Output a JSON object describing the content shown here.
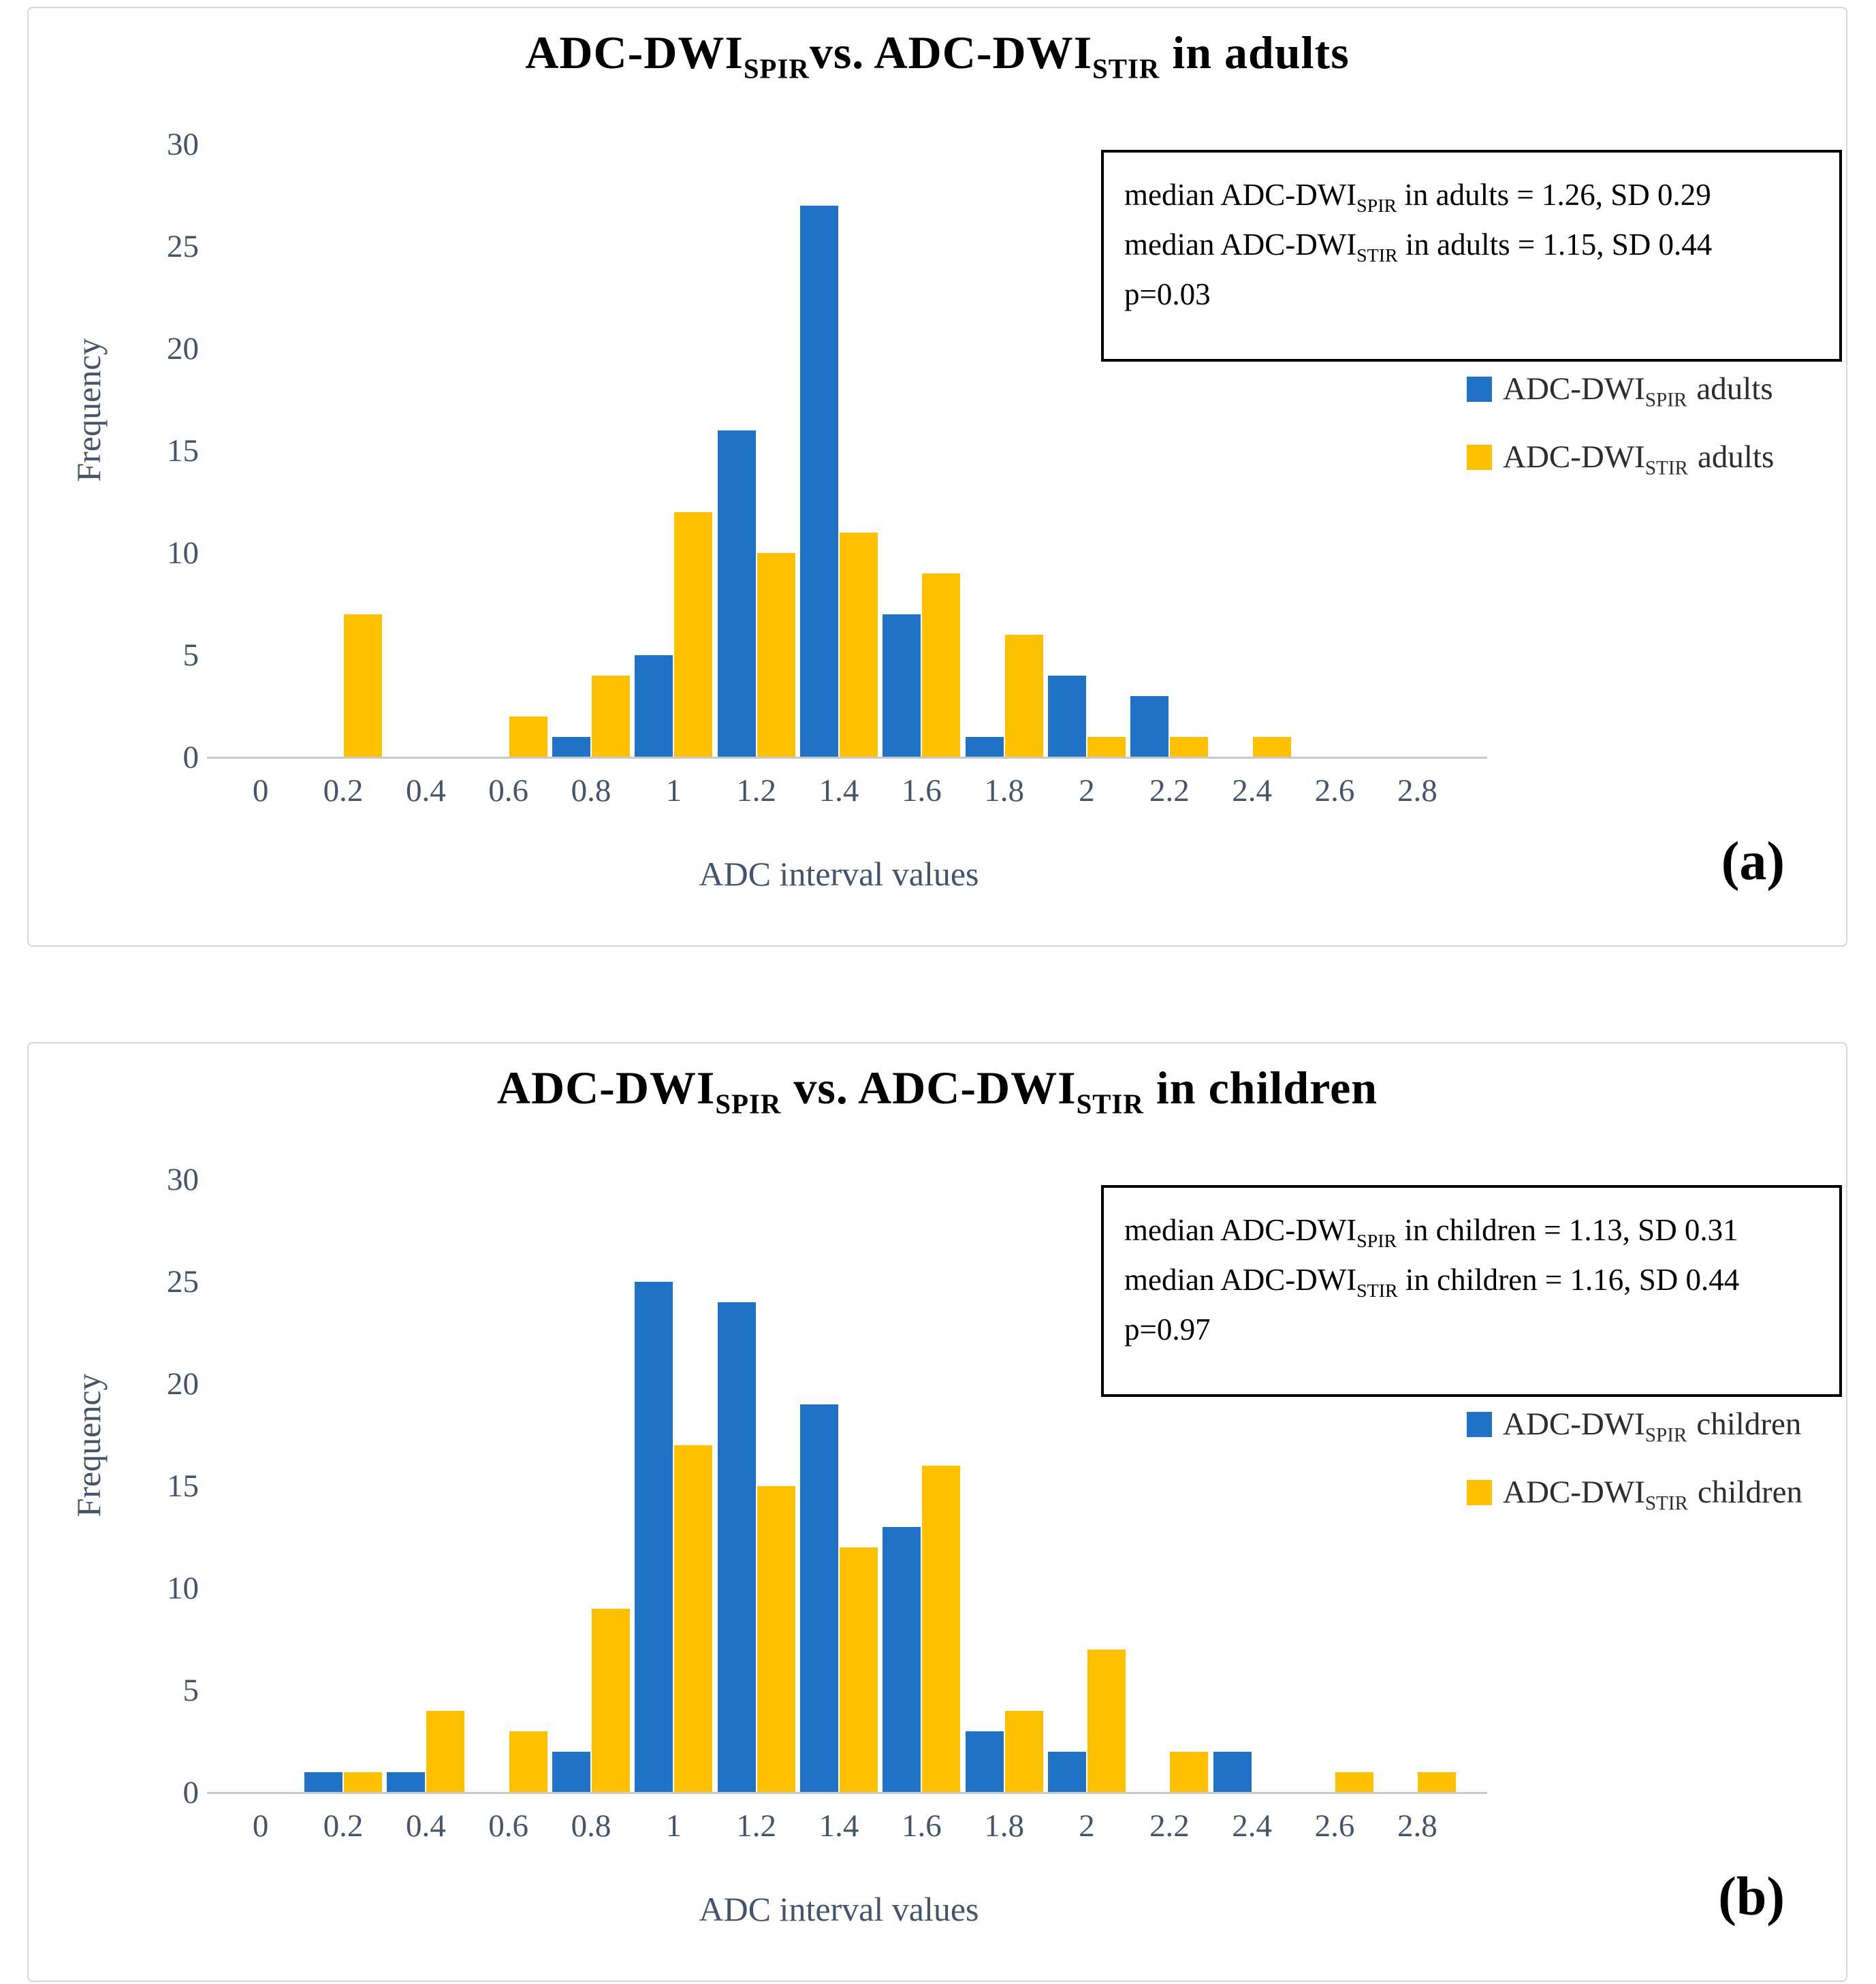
{
  "panels": [
    {
      "id": "adults",
      "panel_label": "(a)",
      "title_parts": [
        {
          "t": "ADC-DWI"
        },
        {
          "t": "SPIR",
          "sub": true
        },
        {
          "t": "vs. ADC-DWI"
        },
        {
          "t": "STIR",
          "sub": true
        },
        {
          "t": " in adults"
        }
      ],
      "stats_lines": [
        [
          {
            "t": "median ADC-DWI"
          },
          {
            "t": "SPIR",
            "sub": true
          },
          {
            "t": " in adults = 1.26, SD 0.29"
          }
        ],
        [
          {
            "t": "median ADC-DWI"
          },
          {
            "t": "STIR",
            "sub": true
          },
          {
            "t": " in adults = 1.15, SD 0.44"
          }
        ],
        [
          {
            "t": "p=0.03"
          }
        ]
      ],
      "legend": [
        {
          "pre": "ADC-DWI",
          "sub": "SPIR",
          "post": "adults",
          "color": "#1F72C6"
        },
        {
          "pre": "ADC-DWI",
          "sub": "STIR",
          "post": "adults",
          "color": "#FFC000"
        }
      ],
      "ylabel": "Frequency",
      "xlabel": "ADC interval values"
    },
    {
      "id": "children",
      "panel_label": "(b)",
      "title_parts": [
        {
          "t": "ADC-DWI"
        },
        {
          "t": "SPIR",
          "sub": true
        },
        {
          "t": " vs. ADC-DWI"
        },
        {
          "t": "STIR",
          "sub": true
        },
        {
          "t": " in children"
        }
      ],
      "stats_lines": [
        [
          {
            "t": "median ADC-DWI"
          },
          {
            "t": "SPIR",
            "sub": true
          },
          {
            "t": " in children = 1.13, SD 0.31"
          }
        ],
        [
          {
            "t": "median ADC-DWI"
          },
          {
            "t": "STIR",
            "sub": true
          },
          {
            "t": " in children = 1.16, SD 0.44"
          }
        ],
        [
          {
            "t": "p=0.97"
          }
        ]
      ],
      "legend": [
        {
          "pre": "ADC-DWI",
          "sub": "SPIR",
          "post": "children",
          "color": "#1F72C6"
        },
        {
          "pre": "ADC-DWI",
          "sub": "STIR",
          "post": "children",
          "color": "#FFC000"
        }
      ],
      "ylabel": "Frequency",
      "xlabel": "ADC interval values"
    }
  ],
  "chart_data": [
    {
      "type": "bar",
      "title": "ADC-DWI SPIR vs. ADC-DWI STIR in adults",
      "categories": [
        0,
        0.2,
        0.4,
        0.6,
        0.8,
        1,
        1.2,
        1.4,
        1.6,
        1.8,
        2,
        2.2,
        2.4,
        2.6,
        2.8
      ],
      "series": [
        {
          "name": "ADC-DWI SPIR adults",
          "color": "#1F72C6",
          "values": [
            0,
            0,
            0,
            0,
            1,
            5,
            16,
            27,
            7,
            1,
            4,
            3,
            0,
            0,
            0
          ]
        },
        {
          "name": "ADC-DWI STIR adults",
          "color": "#FFC000",
          "values": [
            0,
            7,
            0,
            2,
            4,
            12,
            10,
            11,
            9,
            6,
            1,
            1,
            1,
            0,
            0
          ]
        }
      ],
      "xlabel": "ADC interval values",
      "ylabel": "Frequency",
      "ylim": [
        0,
        30
      ],
      "ytick_step": 5,
      "grid": false,
      "legend_position": "right",
      "stats": {
        "median_spir": 1.26,
        "sd_spir": 0.29,
        "median_stir": 1.15,
        "sd_stir": 0.44,
        "p": 0.03
      }
    },
    {
      "type": "bar",
      "title": "ADC-DWI SPIR vs. ADC-DWI STIR in children",
      "categories": [
        0,
        0.2,
        0.4,
        0.6,
        0.8,
        1,
        1.2,
        1.4,
        1.6,
        1.8,
        2,
        2.2,
        2.4,
        2.6,
        2.8
      ],
      "series": [
        {
          "name": "ADC-DWI SPIR children",
          "color": "#1F72C6",
          "values": [
            0,
            1,
            1,
            0,
            2,
            25,
            24,
            19,
            13,
            3,
            2,
            0,
            2,
            0,
            0
          ]
        },
        {
          "name": "ADC-DWI STIR children",
          "color": "#FFC000",
          "values": [
            0,
            1,
            4,
            3,
            9,
            17,
            15,
            12,
            16,
            4,
            7,
            2,
            0,
            1,
            1
          ]
        }
      ],
      "xlabel": "ADC interval values",
      "ylabel": "Frequency",
      "ylim": [
        0,
        30
      ],
      "ytick_step": 5,
      "grid": false,
      "legend_position": "right",
      "stats": {
        "median_spir": 1.13,
        "sd_spir": 0.31,
        "median_stir": 1.16,
        "sd_stir": 0.44,
        "p": 0.97
      }
    }
  ]
}
